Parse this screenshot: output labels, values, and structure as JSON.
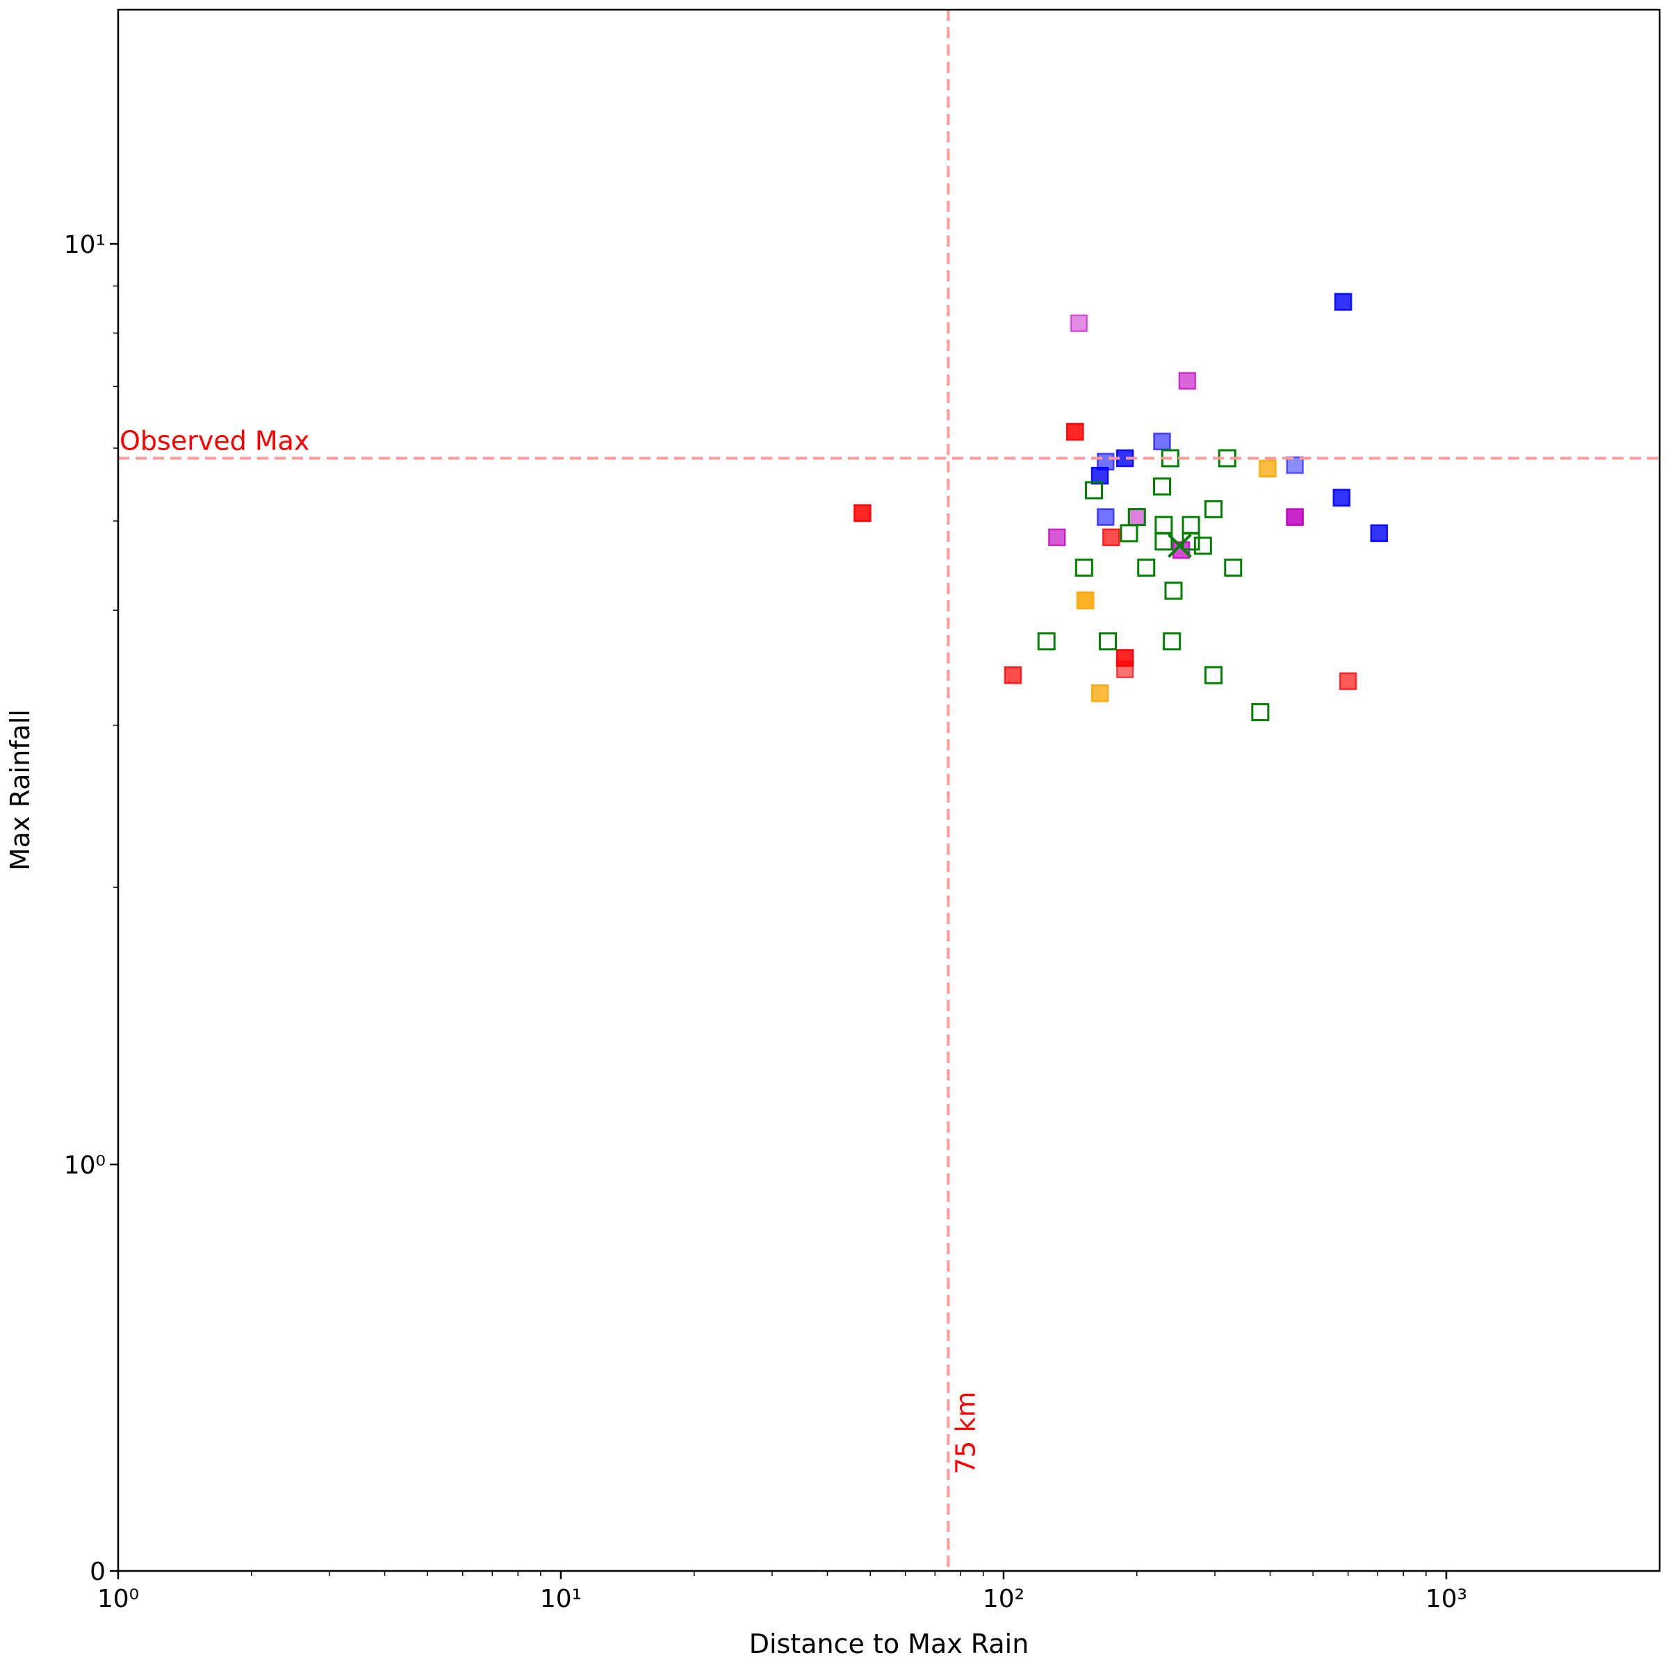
{
  "chart_data": {
    "type": "scatter",
    "title": "",
    "xlabel": "Distance to Max Rain",
    "ylabel": "Max Rainfall",
    "x_scale": "log",
    "y_scale": "symlog",
    "xlim": [
      1,
      1700
    ],
    "ylim": [
      0,
      25
    ],
    "grid": false,
    "x_ticks": [
      {
        "value": 1,
        "label": "10⁰"
      },
      {
        "value": 10,
        "label": "10¹"
      },
      {
        "value": 100,
        "label": "10²"
      },
      {
        "value": 1000,
        "label": "10³"
      }
    ],
    "y_ticks": [
      {
        "value": 0,
        "label": "0"
      },
      {
        "value": 1,
        "label": "10⁰"
      },
      {
        "value": 10,
        "label": "10¹"
      }
    ],
    "reference_lines": [
      {
        "orientation": "vertical",
        "value": 75,
        "label": "75 km",
        "color": "#ff9999"
      },
      {
        "orientation": "horizontal",
        "value": 5.85,
        "label": "Observed Max",
        "color": "#ff9999"
      }
    ],
    "colors": {
      "red": "#ff0000",
      "blue": "#0000ff",
      "orchid": "#c000c0",
      "orange": "#ffa500",
      "green": "#008000"
    },
    "series": [
      {
        "color": "red",
        "marker": "square-filled",
        "points": [
          [
            48,
            5.1,
            0.85
          ],
          [
            145,
            6.25,
            0.85
          ],
          [
            188,
            3.55,
            0.85
          ],
          [
            105,
            3.4,
            0.7
          ],
          [
            175,
            4.8,
            0.7
          ],
          [
            188,
            3.45,
            0.55
          ],
          [
            600,
            3.35,
            0.65
          ]
        ]
      },
      {
        "color": "blue",
        "marker": "square-filled",
        "points": [
          [
            585,
            8.65,
            0.8
          ],
          [
            188,
            5.85,
            0.8
          ],
          [
            165,
            5.6,
            0.8
          ],
          [
            580,
            5.3,
            0.8
          ],
          [
            705,
            4.85,
            0.8
          ],
          [
            228,
            6.1,
            0.55
          ],
          [
            170,
            5.8,
            0.55
          ],
          [
            170,
            5.05,
            0.55
          ],
          [
            455,
            5.75,
            0.45
          ]
        ]
      },
      {
        "color": "orchid",
        "marker": "square-filled",
        "points": [
          [
            148,
            8.2,
            0.45
          ],
          [
            260,
            7.1,
            0.6
          ],
          [
            455,
            5.05,
            0.85
          ],
          [
            132,
            4.8,
            0.65
          ],
          [
            200,
            5.05,
            0.5
          ],
          [
            252,
            4.65,
            0.7
          ]
        ]
      },
      {
        "color": "orange",
        "marker": "square-filled",
        "points": [
          [
            153,
            4.1,
            0.85
          ],
          [
            395,
            5.7,
            0.75
          ],
          [
            165,
            3.25,
            0.75
          ]
        ]
      },
      {
        "color": "green",
        "marker": "square-open",
        "points": [
          [
            160,
            5.4,
            1
          ],
          [
            192,
            4.85,
            1
          ],
          [
            200,
            5.05,
            1
          ],
          [
            230,
            4.75,
            1
          ],
          [
            230,
            4.95,
            1
          ],
          [
            238,
            5.85,
            1
          ],
          [
            320,
            5.85,
            1
          ],
          [
            228,
            5.45,
            1
          ],
          [
            298,
            5.15,
            1
          ],
          [
            265,
            4.75,
            1
          ],
          [
            265,
            4.95,
            1
          ],
          [
            282,
            4.7,
            1
          ],
          [
            210,
            4.45,
            1
          ],
          [
            242,
            4.2,
            1
          ],
          [
            330,
            4.45,
            1
          ],
          [
            152,
            4.45,
            1
          ],
          [
            125,
            3.7,
            1
          ],
          [
            172,
            3.7,
            1
          ],
          [
            240,
            3.7,
            1
          ],
          [
            298,
            3.4,
            1
          ],
          [
            380,
            3.1,
            1
          ]
        ]
      },
      {
        "color": "green",
        "marker": "x",
        "points": [
          [
            250,
            4.7,
            1
          ]
        ]
      }
    ]
  }
}
